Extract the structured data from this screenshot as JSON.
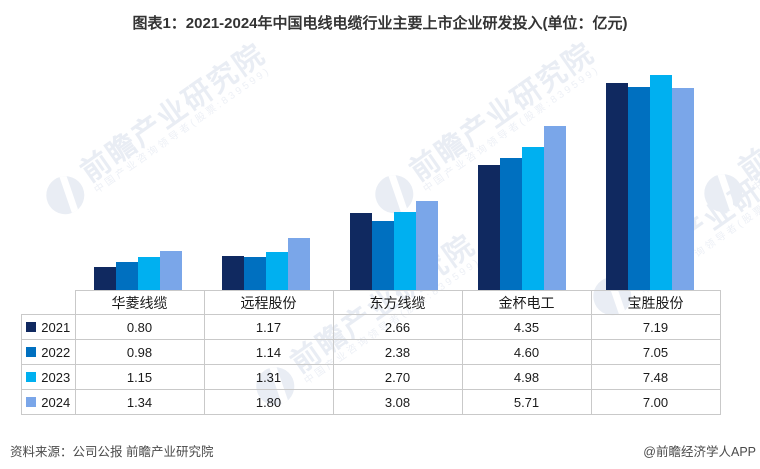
{
  "title": "图表1：2021-2024年中国电线电缆行业主要上市企业研发投入(单位：亿元)",
  "chart_data": {
    "type": "bar",
    "title": "2021-2024年中国电线电缆行业主要上市企业研发投入",
    "unit": "亿元",
    "categories": [
      "华菱线缆",
      "远程股份",
      "东方线缆",
      "金杯电工",
      "宝胜股份"
    ],
    "series": [
      {
        "name": "2021",
        "color": "#102960",
        "values": [
          0.8,
          1.17,
          2.66,
          4.35,
          7.19
        ]
      },
      {
        "name": "2022",
        "color": "#0070c0",
        "values": [
          0.98,
          1.14,
          2.38,
          4.6,
          7.05
        ]
      },
      {
        "name": "2023",
        "color": "#00b0f0",
        "values": [
          1.15,
          1.31,
          2.7,
          4.98,
          7.48
        ]
      },
      {
        "name": "2024",
        "color": "#7aa6e9",
        "values": [
          1.34,
          1.8,
          3.08,
          5.71,
          7.0
        ]
      }
    ],
    "ylim": [
      0,
      8
    ],
    "grid": false,
    "legend_position": "table-left",
    "value_format": "0.00"
  },
  "watermark": {
    "main": "前瞻产业研究院",
    "sub": "中国产业咨询领导者(股票:839599)"
  },
  "footer": {
    "source": "资料来源：公司公报 前瞻产业研究院",
    "credit": "@前瞻经济学人APP"
  }
}
